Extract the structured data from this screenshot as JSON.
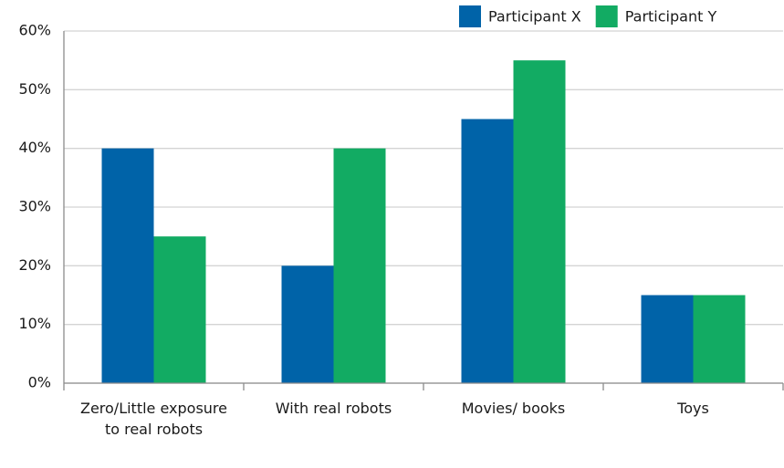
{
  "chart_data": {
    "type": "bar",
    "categories": [
      "Zero/Little exposure to real robots",
      "With real robots",
      "Movies/ books",
      "Toys"
    ],
    "series": [
      {
        "name": "Participant X",
        "color": "#0063a8",
        "values": [
          40,
          20,
          45,
          15
        ]
      },
      {
        "name": "Participant Y",
        "color": "#12ab63",
        "values": [
          25,
          40,
          55,
          15
        ]
      }
    ],
    "ylim": [
      0,
      60
    ],
    "yticks": [
      {
        "value": 0,
        "label": "0%"
      },
      {
        "value": 10,
        "label": "10%"
      },
      {
        "value": 20,
        "label": "20%"
      },
      {
        "value": 30,
        "label": "30%"
      },
      {
        "value": 40,
        "label": "40%"
      },
      {
        "value": 50,
        "label": "50%"
      },
      {
        "value": 60,
        "label": "60%"
      }
    ],
    "grid": true,
    "legend": "top-right"
  }
}
